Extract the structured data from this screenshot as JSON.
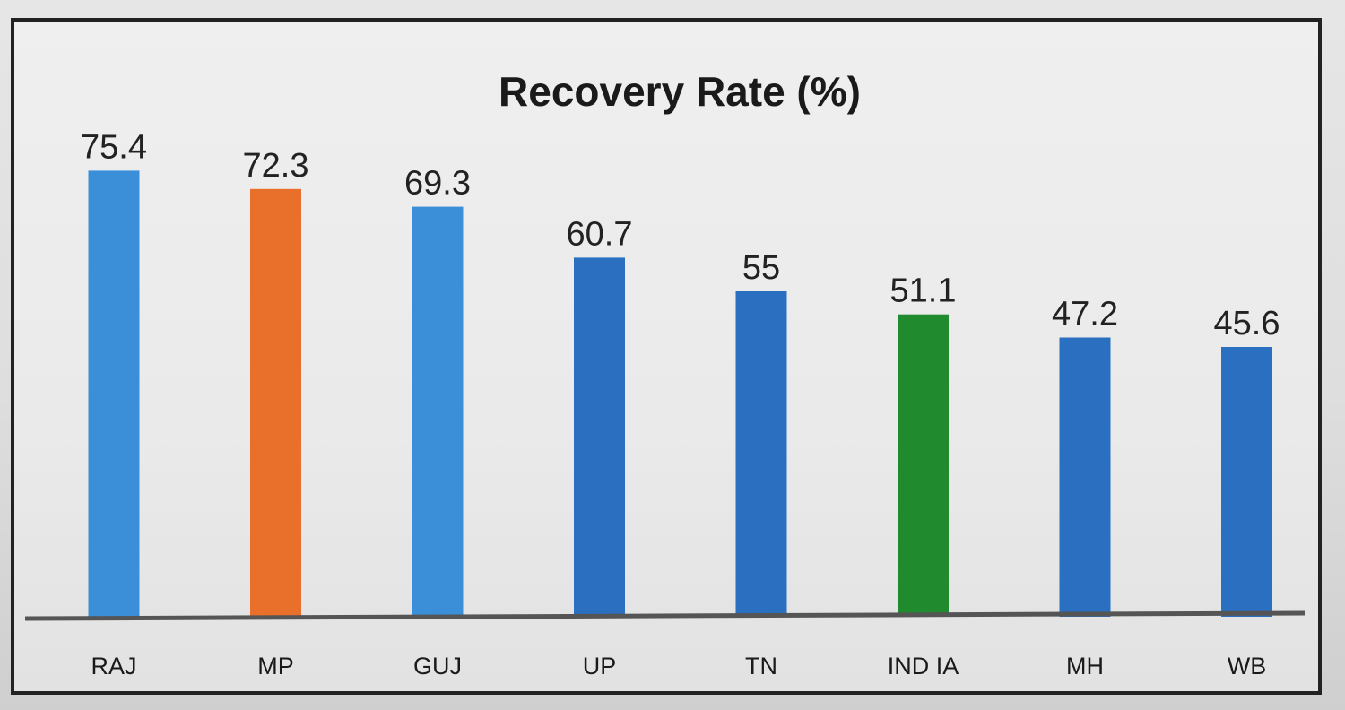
{
  "chart_data": {
    "type": "bar",
    "title": "Recovery Rate (%)",
    "xlabel": "",
    "ylabel": "",
    "categories": [
      "RAJ",
      "MP",
      "GUJ",
      "UP",
      "TN",
      "IND IA",
      "MH",
      "WB"
    ],
    "values": [
      75.4,
      72.3,
      69.3,
      60.7,
      55,
      51.1,
      47.2,
      45.6
    ],
    "value_labels": [
      "75.4",
      "72.3",
      "69.3",
      "60.7",
      "55",
      "51.1",
      "47.2",
      "45.6"
    ],
    "ylim": [
      0,
      80
    ],
    "grid": false,
    "legend": "none",
    "bar_colors": [
      "#3b8fd8",
      "#e8702a",
      "#3b8fd8",
      "#2a6fc0",
      "#2a6fc0",
      "#1f8a2e",
      "#2a6fc0",
      "#2a6fc0"
    ],
    "axis_color": "#555555"
  }
}
